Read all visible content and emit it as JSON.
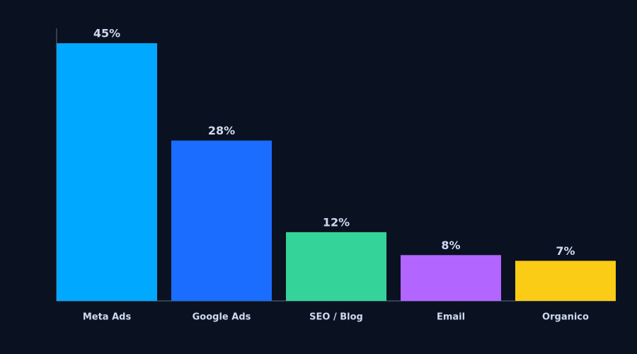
{
  "chart_data": {
    "type": "bar",
    "categories": [
      "Meta Ads",
      "Google Ads",
      "SEO / Blog",
      "Email",
      "Organico"
    ],
    "values": [
      45,
      28,
      12,
      8,
      7
    ],
    "value_labels": [
      "45%",
      "28%",
      "12%",
      "8%",
      "7%"
    ],
    "colors": [
      "#00a8ff",
      "#1a6dff",
      "#34d399",
      "#b266ff",
      "#facc15"
    ],
    "ylim": [
      0,
      47.6
    ]
  }
}
